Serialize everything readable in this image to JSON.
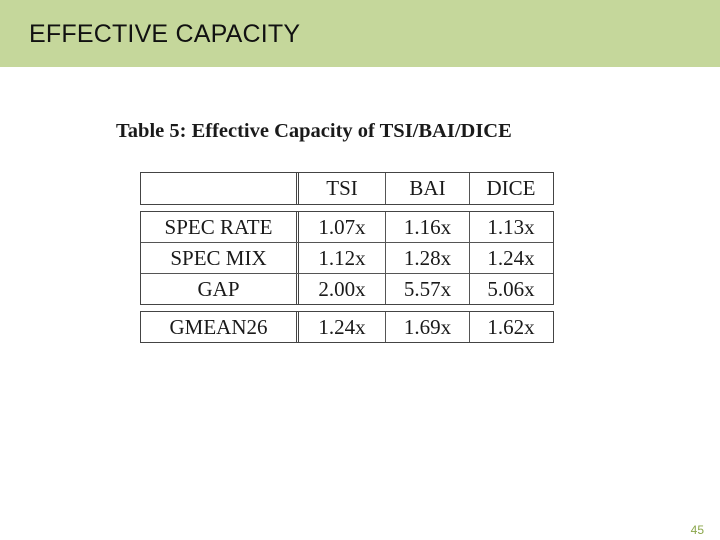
{
  "slide": {
    "title": "EFFECTIVE CAPACITY",
    "page_number": "45",
    "header_color": "#c5d79b"
  },
  "table": {
    "caption": "Table 5: Effective Capacity of TSI/BAI/DICE",
    "columns": [
      "",
      "TSI",
      "BAI",
      "DICE"
    ],
    "rows": [
      [
        "SPEC RATE",
        "1.07x",
        "1.16x",
        "1.13x"
      ],
      [
        "SPEC MIX",
        "1.12x",
        "1.28x",
        "1.24x"
      ],
      [
        "GAP",
        "2.00x",
        "5.57x",
        "5.06x"
      ]
    ],
    "summary": [
      "GMEAN26",
      "1.24x",
      "1.69x",
      "1.62x"
    ]
  }
}
